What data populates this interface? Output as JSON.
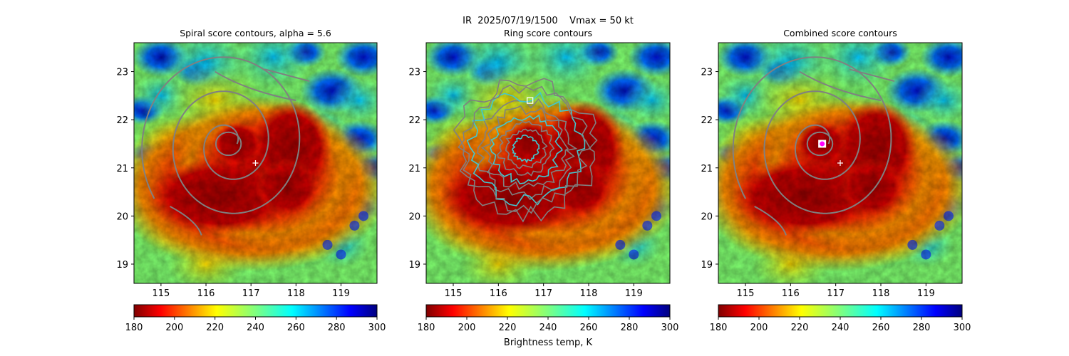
{
  "figure": {
    "suptitle": "IR  2025/07/19/1500    Vmax = 50 kt"
  },
  "colorbar": {
    "label": "Brightness temp, K",
    "range": [
      180,
      300
    ],
    "ticks": [
      180,
      200,
      220,
      240,
      260,
      280,
      300
    ],
    "colormap": "jet_r"
  },
  "chart_data": [
    {
      "type": "heatmap",
      "title": "Spiral score contours, alpha =  5.6",
      "variable": "IR brightness temperature (K)",
      "xlim": [
        114.4,
        119.8
      ],
      "ylim": [
        18.6,
        23.6
      ],
      "xticks": [
        115,
        116,
        117,
        118,
        119
      ],
      "yticks": [
        19,
        20,
        21,
        22,
        23
      ],
      "center_marker": {
        "lon": 117.1,
        "lat": 21.1,
        "symbol": "+"
      },
      "contour_color": "#808080",
      "contour_style": "spiral",
      "spiral_center": {
        "lon": 116.5,
        "lat": 21.5
      }
    },
    {
      "type": "heatmap",
      "title": "Ring score contours",
      "variable": "IR brightness temperature (K)",
      "xlim": [
        114.4,
        119.8
      ],
      "ylim": [
        18.6,
        23.6
      ],
      "xticks": [
        115,
        116,
        117,
        118,
        119
      ],
      "yticks": [
        19,
        20,
        21,
        22,
        23
      ],
      "best_ring_marker": {
        "lon": 116.7,
        "lat": 22.4,
        "symbol": "square"
      },
      "contour_color": "#808080",
      "contour_style": "noisy-ring",
      "ring_region": {
        "lon": 116.6,
        "lat": 21.4
      }
    },
    {
      "type": "heatmap",
      "title": "Combined score contours",
      "variable": "IR brightness temperature (K)",
      "xlim": [
        114.4,
        119.8
      ],
      "ylim": [
        18.6,
        23.6
      ],
      "xticks": [
        115,
        116,
        117,
        118,
        119
      ],
      "yticks": [
        19,
        20,
        21,
        22,
        23
      ],
      "center_marker": {
        "lon": 117.1,
        "lat": 21.1,
        "symbol": "+"
      },
      "best_center_marker": {
        "lon": 116.7,
        "lat": 21.5,
        "symbol": "magenta circle in white square"
      },
      "contour_color": "#808080",
      "contour_style": "spiral",
      "spiral_center": {
        "lon": 116.65,
        "lat": 21.5
      }
    }
  ]
}
